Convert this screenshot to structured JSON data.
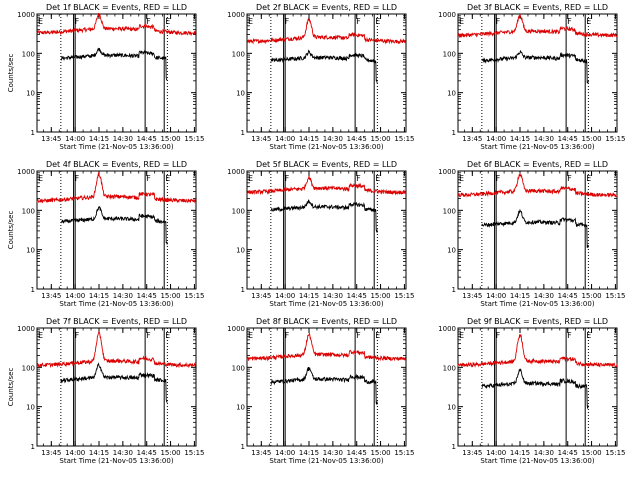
{
  "chart_data": {
    "type": "line",
    "y_scale": "log",
    "ylim": [
      1,
      1000
    ],
    "xlim": [
      "13:36",
      "15:16"
    ],
    "x_tick_labels": [
      "13:45",
      "14:00",
      "14:15",
      "14:30",
      "14:45",
      "15:00",
      "15:15"
    ],
    "y_tick_labels": [
      "1",
      "10",
      "100",
      "1000"
    ],
    "grid": false,
    "legend": "none",
    "colors": {
      "events": "#000000",
      "lld": "#dd0000"
    },
    "marker_labels": [
      "F",
      "E"
    ],
    "dotted_markers": [
      "13:51",
      "14:58"
    ],
    "solid_markers": [
      "13:59",
      "14:00",
      "14:44",
      "14:56"
    ],
    "panels": [
      {
        "title": "Det 1f BLACK = Events, RED = LLD",
        "xlabel": "Start Time (21-Nov-05 13:36:00)",
        "ylabel": "Counts/sec",
        "events_base": 80,
        "events_peak": 120,
        "lld_base": 380,
        "lld_peak": 950,
        "end_time": "15:16"
      },
      {
        "title": "Det 2f BLACK = Events, RED = LLD",
        "xlabel": "Start Time (21-Nov-05 13:36:00)",
        "ylabel": "",
        "events_base": 70,
        "events_peak": 100,
        "lld_base": 230,
        "lld_peak": 700,
        "end_time": "15:16"
      },
      {
        "title": "Det 3f BLACK = Events, RED = LLD",
        "xlabel": "Start Time (21-Nov-05 13:36:00)",
        "ylabel": "",
        "events_base": 70,
        "events_peak": 100,
        "lld_base": 330,
        "lld_peak": 900,
        "end_time": "15:16"
      },
      {
        "title": "Det 4f BLACK = Events, RED = LLD",
        "xlabel": "Start Time (21-Nov-05 13:36:00)",
        "ylabel": "Counts/sec",
        "events_base": 55,
        "events_peak": 110,
        "lld_base": 200,
        "lld_peak": 800,
        "end_time": "15:16"
      },
      {
        "title": "Det 5f BLACK = Events, RED = LLD",
        "xlabel": "Start Time (21-Nov-05 13:36:00)",
        "ylabel": "",
        "events_base": 110,
        "events_peak": 160,
        "lld_base": 330,
        "lld_peak": 650,
        "end_time": "15:16"
      },
      {
        "title": "Det 6f BLACK = Events, RED = LLD",
        "xlabel": "Start Time (21-Nov-05 13:36:00)",
        "ylabel": "",
        "events_base": 45,
        "events_peak": 90,
        "lld_base": 280,
        "lld_peak": 800,
        "end_time": "15:16"
      },
      {
        "title": "Det 7f BLACK = Events, RED = LLD",
        "xlabel": "Start Time (21-Nov-05 13:36:00)",
        "ylabel": "Counts/sec",
        "events_base": 50,
        "events_peak": 110,
        "lld_base": 130,
        "lld_peak": 700,
        "end_time": "15:16"
      },
      {
        "title": "Det 8f BLACK = Events, RED = LLD",
        "xlabel": "Start Time (21-Nov-05 13:36:00)",
        "ylabel": "",
        "events_base": 45,
        "events_peak": 90,
        "lld_base": 190,
        "lld_peak": 650,
        "end_time": "15:16"
      },
      {
        "title": "Det 9f BLACK = Events, RED = LLD",
        "xlabel": "Start Time (21-Nov-05 13:36:00)",
        "ylabel": "",
        "events_base": 35,
        "events_peak": 80,
        "lld_base": 130,
        "lld_peak": 650,
        "end_time": "15:16"
      }
    ]
  }
}
